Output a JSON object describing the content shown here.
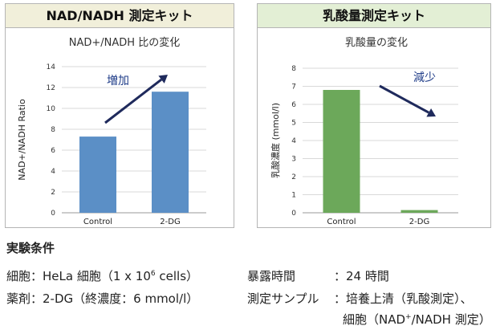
{
  "chart_data": [
    {
      "type": "bar",
      "panel_header": "NAD/NADH 測定キット",
      "title": "NAD+/NADH 比の変化",
      "ylabel": "NAD+/NADH Ratio",
      "xlabel": "",
      "categories": [
        "Control",
        "2-DG"
      ],
      "values": [
        7.3,
        11.6
      ],
      "ylim": [
        0,
        14
      ],
      "yticks": [
        0,
        2,
        4,
        6,
        8,
        10,
        12,
        14
      ],
      "bar_color": "#5b8fc6",
      "grid": true,
      "annotation": "増加",
      "annotation_color": "#1f3c88"
    },
    {
      "type": "bar",
      "panel_header": "乳酸量測定キット",
      "title": "乳酸量の変化",
      "ylabel": "乳酸濃度 (mmol/l)",
      "xlabel": "",
      "categories": [
        "Control",
        "2-DG"
      ],
      "values": [
        6.8,
        0.15
      ],
      "ylim": [
        0,
        8
      ],
      "yticks": [
        0,
        1,
        2,
        3,
        4,
        5,
        6,
        7,
        8
      ],
      "bar_color": "#6ca85a",
      "grid": true,
      "annotation": "減少",
      "annotation_color": "#1f3c88"
    }
  ],
  "conditions": {
    "title": "実験条件",
    "cells_label": "細胞：",
    "cells_value": "HeLa 細胞（1 x 10",
    "cells_exp": "6",
    "cells_tail": " cells）",
    "drug_label": "薬剤：",
    "drug_value": "2-DG（終濃度：6 mmol/l）",
    "exposure_label": "暴露時間",
    "exposure_value": "：24 時間",
    "sample_label": "測定サンプル",
    "sample_value1": "：培養上清（乳酸測定）、",
    "sample_value2_pre": "細胞（NAD",
    "sample_value2_sup": "+",
    "sample_value2_post": "/NADH 測定）"
  }
}
